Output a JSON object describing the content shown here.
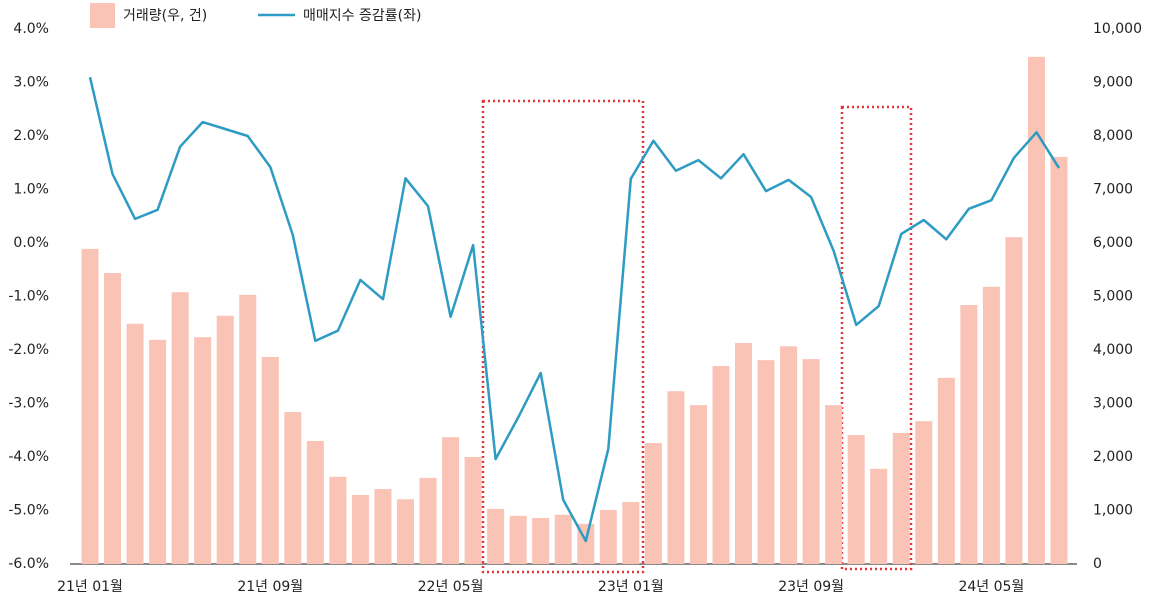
{
  "chart_data": {
    "type": "combo",
    "categories": [
      "21년 01월",
      null,
      null,
      null,
      null,
      null,
      null,
      null,
      "21년 09월",
      null,
      null,
      null,
      null,
      null,
      null,
      null,
      "22년 05월",
      null,
      null,
      null,
      null,
      null,
      null,
      null,
      "23년 01월",
      null,
      null,
      null,
      null,
      null,
      null,
      null,
      "23년 09월",
      null,
      null,
      null,
      null,
      null,
      null,
      null,
      "24년 05월",
      null,
      null,
      null
    ],
    "series": [
      {
        "name": "거래량(우, 건)",
        "type": "bar",
        "axis": "y2",
        "color": "#f9c3b6",
        "values": [
          5890,
          5440,
          4490,
          4190,
          5080,
          4240,
          4640,
          5030,
          3870,
          2840,
          2300,
          1630,
          1290,
          1400,
          1210,
          1610,
          2370,
          2000,
          1030,
          900,
          860,
          920,
          750,
          1010,
          1160,
          2260,
          3230,
          2970,
          3700,
          4130,
          3810,
          4070,
          3830,
          2970,
          2410,
          1780,
          2450,
          2670,
          3480,
          4840,
          5180,
          6110,
          9480,
          7610
        ]
      },
      {
        "name": "매매지수 증감률(좌)",
        "type": "line",
        "axis": "y",
        "color": "#2e9bc2",
        "values": [
          3.1,
          1.29,
          0.45,
          0.62,
          1.8,
          2.26,
          2.13,
          2.0,
          1.42,
          0.15,
          -1.83,
          -1.64,
          -0.69,
          -1.05,
          1.21,
          0.69,
          -1.38,
          -0.04,
          -4.04,
          -3.26,
          -2.43,
          -4.8,
          -5.57,
          -3.85,
          1.2,
          1.91,
          1.35,
          1.55,
          1.21,
          1.66,
          0.97,
          1.18,
          0.86,
          -0.15,
          -1.53,
          -1.18,
          0.17,
          0.43,
          0.07,
          0.64,
          0.8,
          1.59,
          2.07,
          1.4
        ]
      }
    ],
    "ylim": [
      -6,
      4
    ],
    "yticks": [
      {
        "value": 4,
        "label": "4.0%"
      },
      {
        "value": 3,
        "label": "3.0%"
      },
      {
        "value": 2,
        "label": "2.0%"
      },
      {
        "value": 1,
        "label": "1.0%"
      },
      {
        "value": 0,
        "label": "0.0%"
      },
      {
        "value": -1,
        "label": "-1.0%"
      },
      {
        "value": -2,
        "label": "-2.0%"
      },
      {
        "value": -3,
        "label": "-3.0%"
      },
      {
        "value": -4,
        "label": "-4.0%"
      },
      {
        "value": -5,
        "label": "-5.0%"
      },
      {
        "value": -6,
        "label": "-6.0%"
      }
    ],
    "y2lim": [
      0,
      10000
    ],
    "y2ticks": [
      {
        "value": 10000,
        "label": "10,000"
      },
      {
        "value": 9000,
        "label": "9,000"
      },
      {
        "value": 8000,
        "label": "8,000"
      },
      {
        "value": 7000,
        "label": "7,000"
      },
      {
        "value": 6000,
        "label": "6,000"
      },
      {
        "value": 5000,
        "label": "5,000"
      },
      {
        "value": 4000,
        "label": "4,000"
      },
      {
        "value": 3000,
        "label": "3,000"
      },
      {
        "value": 2000,
        "label": "2,000"
      },
      {
        "value": 1000,
        "label": "1,000"
      },
      0
    ],
    "legend": "top-left",
    "grid": false
  }
}
